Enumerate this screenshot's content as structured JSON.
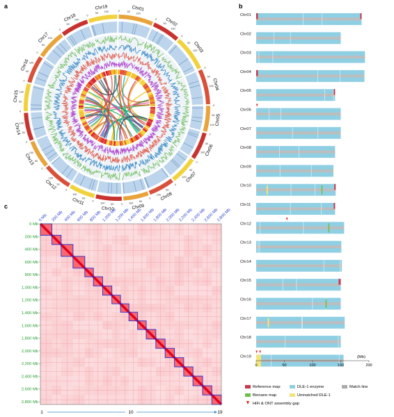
{
  "panels": {
    "a": "a",
    "b": "b",
    "c": "c"
  },
  "circos": {
    "chromosomes": [
      "Chr01",
      "Chr02",
      "Chr03",
      "Chr04",
      "Chr05",
      "Chr06",
      "Chr07",
      "Chr08",
      "Chr09",
      "Chr10",
      "Chr11",
      "Chr12",
      "Chr13",
      "Chr14",
      "Chr15",
      "Chr16",
      "Chr17",
      "Chr18",
      "Chr19"
    ],
    "lengths_mb": [
      187,
      150,
      193,
      192,
      140,
      150,
      150,
      140,
      137,
      141,
      140,
      156,
      151,
      152,
      150,
      150,
      157,
      150,
      155
    ],
    "tick_labels": [
      "0",
      "50",
      "100",
      "150"
    ],
    "ideogram_colors": [
      "#e8a33a",
      "#c9332f",
      "#f2d23c",
      "#d9513a"
    ],
    "track_colors": [
      "#bcd5ec",
      "#7cc36c",
      "#4a93c9",
      "#e0655a",
      "#b44fd0"
    ],
    "link_colors": [
      "#e74c3c",
      "#f39c12",
      "#f1c40f",
      "#27ae60",
      "#2980b9",
      "#8e44ad",
      "#16a085",
      "#d35400",
      "#c0392b",
      "#2c3e50",
      "#e84393",
      "#00b894"
    ]
  },
  "karyotype": {
    "chromosomes": [
      "Chr01",
      "Chr02",
      "Chr03",
      "Chr04",
      "Chr05",
      "Chr06",
      "Chr07",
      "Chr08",
      "Chr09",
      "Chr10",
      "Chr11",
      "Chr12",
      "Chr13",
      "Chr14",
      "Chr15",
      "Chr16",
      "Chr17",
      "Chr18",
      "Chr19"
    ],
    "lengths_mb": [
      187,
      150,
      193,
      192,
      140,
      150,
      150,
      140,
      137,
      141,
      140,
      156,
      151,
      152,
      150,
      150,
      157,
      150,
      155
    ],
    "axis_ticks": [
      "0",
      "50",
      "100",
      "150",
      "200"
    ],
    "axis_unit": "(Mb)",
    "colors": {
      "reference": "#c4394d",
      "enzyme": "#8fcfe3",
      "match": "#bdbdbd",
      "bionano": "#6cc04a",
      "unmatched": "#f5e37a",
      "gap": "#e02020"
    },
    "legend": [
      {
        "label": "Reference map",
        "color": "#c4394d"
      },
      {
        "label": "DLE-1 enzyme",
        "color": "#8fcfe3"
      },
      {
        "label": "Match line",
        "color": "#aaaaaa"
      },
      {
        "label": "Bionano map",
        "color": "#6cc04a"
      },
      {
        "label": "Unmatched DLE-1",
        "color": "#f5e37a"
      }
    ],
    "gap_legend": "HiFi & ONT assembly gap"
  },
  "hic": {
    "axis_labels": [
      "0 Mb",
      "200 Mb",
      "400 Mb",
      "600 Mb",
      "800 Mb",
      "1,000 Mb",
      "1,200 Mb",
      "1,400 Mb",
      "1,600 Mb",
      "1,800 Mb",
      "2,000 Mb",
      "2,200 Mb",
      "2,400 Mb",
      "2,600 Mb",
      "2,800 Mb"
    ],
    "bottom_labels": [
      "1",
      "10",
      "19"
    ],
    "axis_color": "#1f9a2a",
    "top_axis_color": "#2a3fd0",
    "box_color": "#2a2ad0",
    "heat_color": "#e3001b"
  }
}
